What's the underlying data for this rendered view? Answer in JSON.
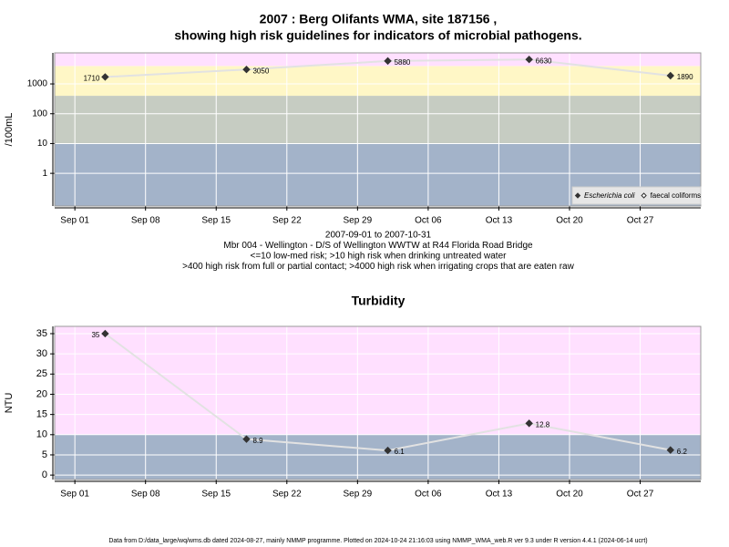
{
  "chart_data": [
    {
      "type": "line",
      "title": "2007 : Berg Olifants WMA, site 187156 ,",
      "subtitle": "showing high risk guidelines for indicators of microbial pathogens.",
      "y_label": "/100mL",
      "log_y": true,
      "grid": true,
      "legend": "bottom-right",
      "x": [
        "Sep 04",
        "Sep 18",
        "Oct 02",
        "Oct 16",
        "Oct 30"
      ],
      "xlim": [
        "Aug 30",
        "Nov 02"
      ],
      "xticks": [
        "Sep 01",
        "Sep 08",
        "Sep 15",
        "Sep 22",
        "Sep 29",
        "Oct 06",
        "Oct 13",
        "Oct 20",
        "Oct 27"
      ],
      "ylim": [
        0.08,
        11000
      ],
      "yticks": [
        1,
        10,
        100,
        1000
      ],
      "bands": [
        {
          "below": 10,
          "color": "#a3b3c9"
        },
        {
          "below": 400,
          "color": "#c6ccc2"
        },
        {
          "below": 4000,
          "color": "#fff7c6"
        },
        {
          "color": "#ffe0ff"
        }
      ],
      "series": [
        {
          "name": "Escherichia coli",
          "color": "#333333",
          "filled": true,
          "values": [
            1710,
            3050,
            5880,
            6630,
            1890
          ]
        },
        {
          "name": "faecal coliforms",
          "color": "#333333",
          "filled": false,
          "values": [
            null,
            null,
            null,
            null,
            null
          ]
        }
      ],
      "notes": [
        "2007-09-01 to 2007-10-31",
        "Mbr 004 - Wellington - D/S of Wellington WWTW at R44 Florida Road Bridge",
        "<=10 low-med risk; >10 high risk when drinking untreated water",
        ">400 high risk from full or partial contact; >4000 high risk when irrigating crops that are eaten raw"
      ]
    },
    {
      "type": "line",
      "title": "Turbidity",
      "y_label": "NTU",
      "log_y": false,
      "grid": true,
      "x": [
        "Sep 04",
        "Sep 18",
        "Oct 02",
        "Oct 16",
        "Oct 30"
      ],
      "xlim": [
        "Aug 30",
        "Nov 02"
      ],
      "xticks": [
        "Sep 01",
        "Sep 08",
        "Sep 15",
        "Sep 22",
        "Sep 29",
        "Oct 06",
        "Oct 13",
        "Oct 20",
        "Oct 27"
      ],
      "ylim": [
        -1.1,
        36.8
      ],
      "yticks": [
        0,
        5,
        10,
        15,
        20,
        25,
        30,
        35
      ],
      "bands": [
        {
          "below": 10,
          "color": "#a3b3c9"
        },
        {
          "color": "#ffe0ff"
        }
      ],
      "series": [
        {
          "name": "Turbidity",
          "color": "#333333",
          "filled": true,
          "values": [
            35,
            8.9,
            6.1,
            12.8,
            6.2
          ]
        }
      ]
    }
  ],
  "footer": "Data from D:/data_large/wq/wms.db dated 2024-08-27, mainly NMMP programme. Plotted on 2024-10-24 21:16:03 using NMMP_WMA_web.R ver 9.3 under R version 4.4.1 (2024-06-14 ucrt)"
}
